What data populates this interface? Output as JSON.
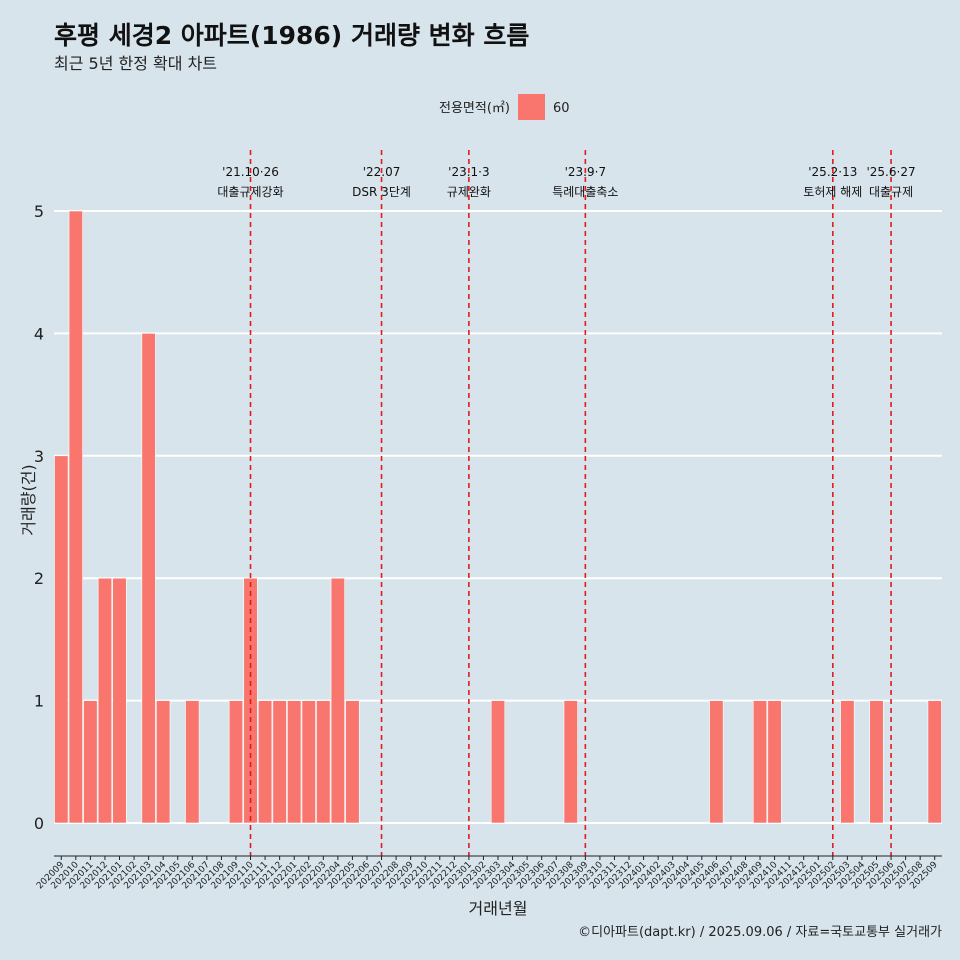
{
  "chart_data": {
    "type": "bar",
    "title": "후평 세경2 아파트(1986) 거래량 변화 흐름",
    "subtitle": "최근 5년 한정 확대 차트",
    "xlabel": "거래년월",
    "ylabel": "거래량(건)",
    "ylim": [
      0,
      5
    ],
    "yticks": [
      "0",
      "1",
      "2",
      "3",
      "4",
      "5"
    ],
    "grid": "horizontal",
    "legend": {
      "title": "전용면적(㎡)",
      "placement": "top",
      "entries": [
        {
          "label": "60",
          "color": "#f8766d"
        }
      ]
    },
    "categories": [
      "202009",
      "202010",
      "202011",
      "202012",
      "202101",
      "202102",
      "202103",
      "202104",
      "202105",
      "202106",
      "202107",
      "202108",
      "202109",
      "202110",
      "202111",
      "202112",
      "202201",
      "202202",
      "202203",
      "202204",
      "202205",
      "202206",
      "202207",
      "202208",
      "202209",
      "202210",
      "202211",
      "202212",
      "202301",
      "202302",
      "202303",
      "202304",
      "202305",
      "202306",
      "202307",
      "202308",
      "202309",
      "202310",
      "202311",
      "202312",
      "202401",
      "202402",
      "202403",
      "202404",
      "202405",
      "202406",
      "202407",
      "202408",
      "202409",
      "202410",
      "202411",
      "202412",
      "202501",
      "202502",
      "202503",
      "202504",
      "202505",
      "202506",
      "202507",
      "202508",
      "202509"
    ],
    "series": [
      {
        "name": "60",
        "color": "#f8766d",
        "values": [
          3,
          5,
          1,
          2,
          2,
          0,
          4,
          1,
          0,
          1,
          0,
          0,
          1,
          2,
          1,
          1,
          1,
          1,
          1,
          2,
          1,
          0,
          0,
          0,
          0,
          0,
          0,
          0,
          0,
          0,
          1,
          0,
          0,
          0,
          0,
          1,
          0,
          0,
          0,
          0,
          0,
          0,
          0,
          0,
          0,
          1,
          0,
          0,
          1,
          1,
          0,
          0,
          0,
          0,
          1,
          0,
          1,
          0,
          0,
          0,
          1
        ]
      }
    ],
    "annotations": [
      {
        "x": 13.5,
        "date": "'21.10·26",
        "label": "대출규제강화"
      },
      {
        "x": 22.5,
        "date": "'22.07",
        "label": "DSR 3단계"
      },
      {
        "x": 28.5,
        "date": "'23.1·3",
        "label": "규제완화"
      },
      {
        "x": 36.5,
        "date": "'23.9·7",
        "label": "특례대출축소"
      },
      {
        "x": 53.5,
        "date": "'25.2·13",
        "label": "토허제 해제"
      },
      {
        "x": 57.5,
        "date": "'25.6·27",
        "label": "대출규제"
      }
    ],
    "annotation_color": "#e41a1c",
    "caption": "©디아파트(dapt.kr) / 2025.09.06 / 자료=국토교통부 실거래가"
  }
}
